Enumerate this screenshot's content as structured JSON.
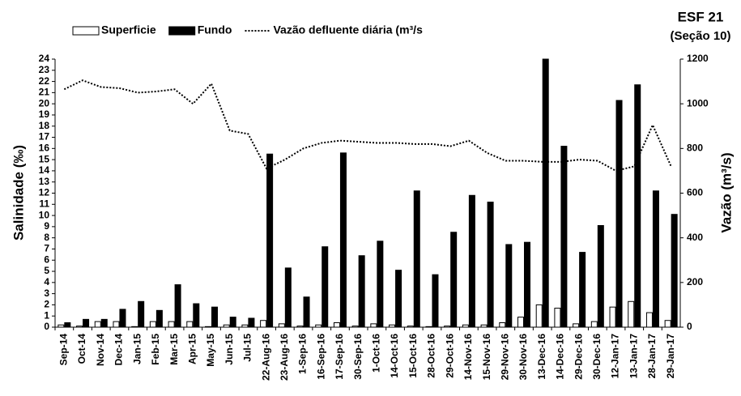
{
  "chart_data": {
    "type": "bar_line",
    "title": "ESF 21",
    "subtitle": "(Seção 10)",
    "y_label": "Salinidade (‰)",
    "y2_label": "Vazão (m³/s)",
    "categories": [
      "Sep-14",
      "Oct-14",
      "Nov-14",
      "Dec-14",
      "Jan-15",
      "Feb-15",
      "Mar-15",
      "Apr-15",
      "May-15",
      "Jun-15",
      "Jul-15",
      "22-Aug-16",
      "23-Aug-16",
      "1-Sep-16",
      "16-Sep-16",
      "17-Sep-16",
      "30-Sep-16",
      "1-Oct-16",
      "14-Oct-16",
      "15-Oct-16",
      "28-Oct-16",
      "29-Oct-16",
      "14-Nov-16",
      "15-Nov-16",
      "29-Nov-16",
      "30-Nov-16",
      "13-Dec-16",
      "14-Dec-16",
      "29-Dec-16",
      "30-Dec-16",
      "12-Jan-17",
      "13-Jan-17",
      "28-Jan-17",
      "29-Jan-17"
    ],
    "series": [
      {
        "name": "Superficie",
        "type": "bar",
        "color": "#ffffff",
        "stroke": "#000000",
        "values": [
          0.2,
          0.1,
          0.5,
          0.5,
          0.05,
          0.5,
          0.5,
          0.5,
          0.05,
          0.2,
          0.2,
          0.6,
          0.3,
          0.1,
          0.2,
          0.4,
          0.1,
          0.3,
          0.2,
          0.1,
          0.05,
          0.1,
          0.2,
          0.2,
          0.4,
          0.9,
          2.0,
          1.7,
          0.3,
          0.5,
          1.8,
          2.3,
          1.3,
          0.6
        ]
      },
      {
        "name": "Fundo",
        "type": "bar",
        "color": "#000000",
        "stroke": "#000000",
        "values": [
          0.4,
          0.7,
          0.7,
          1.6,
          2.3,
          1.5,
          3.8,
          2.1,
          1.8,
          0.9,
          0.8,
          15.5,
          5.3,
          2.7,
          7.2,
          15.6,
          6.4,
          7.7,
          5.1,
          12.2,
          4.7,
          8.5,
          11.8,
          11.2,
          7.4,
          7.6,
          24,
          16.2,
          6.7,
          9.1,
          20.3,
          21.7,
          12.2,
          10.1
        ]
      },
      {
        "name": "Vazão defluente diária (m³/s",
        "type": "line",
        "axis": "y2",
        "color": "#000000",
        "dash": "dotted",
        "values": [
          1065,
          1105,
          1075,
          1070,
          1050,
          1055,
          1065,
          1000,
          1090,
          880,
          865,
          710,
          750,
          800,
          825,
          835,
          830,
          825,
          825,
          820,
          820,
          810,
          835,
          780,
          745,
          745,
          740,
          740,
          750,
          745,
          700,
          720,
          905,
          720
        ]
      }
    ],
    "ylim": [
      0,
      24
    ],
    "yticks": [
      0,
      1,
      2,
      3,
      4,
      5,
      6,
      7,
      8,
      9,
      10,
      11,
      12,
      13,
      14,
      15,
      16,
      17,
      18,
      19,
      20,
      21,
      22,
      23,
      24
    ],
    "y2lim": [
      0,
      1200
    ],
    "y2ticks": [
      0,
      200,
      400,
      600,
      800,
      1000,
      1200
    ]
  }
}
